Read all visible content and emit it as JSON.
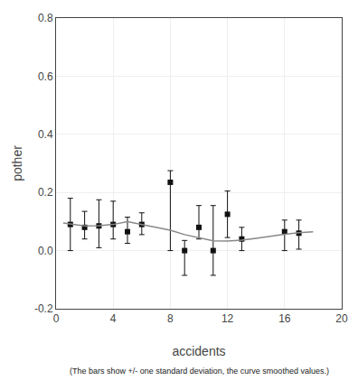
{
  "chart_data": {
    "type": "scatter",
    "xlabel": "accidents",
    "ylabel": "pother",
    "annotations": [
      "(The bars show +/- one standard deviation, the curve smoothed values.)"
    ],
    "series": [
      {
        "type": "scatter",
        "marker": "square",
        "color": "#111111",
        "x": [
          1,
          2,
          3,
          4,
          5,
          6,
          8,
          9,
          10,
          11,
          12,
          13,
          16,
          17
        ],
        "values": [
          0.09,
          0.08,
          0.085,
          0.09,
          0.065,
          0.09,
          0.235,
          0.0,
          0.08,
          0.0,
          0.125,
          0.04,
          0.065,
          0.06
        ],
        "error_low": [
          0.09,
          0.04,
          0.075,
          0.05,
          0.04,
          0.035,
          0.235,
          0.085,
          0.04,
          0.085,
          0.08,
          0.04,
          0.065,
          0.055
        ],
        "error_high": [
          0.09,
          0.055,
          0.09,
          0.08,
          0.05,
          0.04,
          0.04,
          0.035,
          0.075,
          0.155,
          0.08,
          0.04,
          0.04,
          0.045
        ]
      },
      {
        "type": "line",
        "color": "#888888",
        "x": [
          0.5,
          1,
          2,
          3,
          4,
          5,
          6,
          7,
          8,
          9,
          9.5,
          10,
          10.5,
          11,
          12,
          13,
          14,
          15,
          16,
          17,
          18
        ],
        "values": [
          0.095,
          0.092,
          0.085,
          0.086,
          0.09,
          0.1,
          0.09,
          0.082,
          0.07,
          0.055,
          0.05,
          0.045,
          0.038,
          0.034,
          0.033,
          0.036,
          0.042,
          0.05,
          0.056,
          0.062,
          0.065
        ]
      }
    ],
    "xlim": [
      0,
      20
    ],
    "ylim": [
      -0.2,
      0.8
    ],
    "xticks": [
      0,
      4,
      8,
      12,
      16,
      20
    ],
    "yticks": [
      -0.2,
      {
        "value": 0,
        "label": "0.0"
      },
      0.2,
      0.4,
      0.6,
      0.8
    ],
    "grid": true
  }
}
